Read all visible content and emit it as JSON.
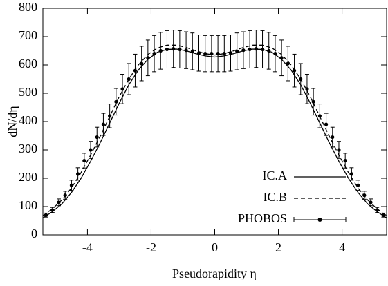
{
  "chart_data": {
    "type": "line",
    "xlabel": "Pseudorapidity η",
    "ylabel": "dN/dη",
    "xlim": [
      -5.4,
      5.4
    ],
    "xticks": [
      -4,
      -2,
      0,
      2,
      4
    ],
    "ylim": [
      0,
      800
    ],
    "yticks": [
      0,
      100,
      200,
      300,
      400,
      500,
      600,
      700,
      800
    ],
    "legend": "lower right",
    "series": [
      {
        "name": "IC.A",
        "color": "#000000",
        "style": "solid",
        "x": [
          -5.4,
          -5.1,
          -4.8,
          -4.5,
          -4.2,
          -3.9,
          -3.6,
          -3.3,
          -3.0,
          -2.7,
          -2.4,
          -2.1,
          -1.8,
          -1.5,
          -1.2,
          -0.9,
          -0.6,
          -0.3,
          0,
          0.3,
          0.6,
          0.9,
          1.2,
          1.5,
          1.8,
          2.1,
          2.4,
          2.7,
          3.0,
          3.3,
          3.6,
          3.9,
          4.2,
          4.5,
          4.8,
          5.1,
          5.4
        ],
        "values": [
          60,
          82,
          110,
          150,
          200,
          260,
          325,
          395,
          465,
          530,
          582,
          620,
          645,
          655,
          656,
          650,
          640,
          632,
          628,
          632,
          640,
          650,
          656,
          655,
          645,
          620,
          582,
          530,
          465,
          395,
          325,
          260,
          200,
          150,
          110,
          82,
          60
        ]
      },
      {
        "name": "IC.B",
        "color": "#000000",
        "style": "dashed",
        "x": [
          -5.4,
          -5.1,
          -4.8,
          -4.5,
          -4.2,
          -3.9,
          -3.6,
          -3.3,
          -3.0,
          -2.7,
          -2.4,
          -2.1,
          -1.8,
          -1.5,
          -1.2,
          -0.9,
          -0.6,
          -0.3,
          0,
          0.3,
          0.6,
          0.9,
          1.2,
          1.5,
          1.8,
          2.1,
          2.4,
          2.7,
          3.0,
          3.3,
          3.6,
          3.9,
          4.2,
          4.5,
          4.8,
          5.1,
          5.4
        ],
        "values": [
          68,
          92,
          124,
          166,
          220,
          282,
          348,
          418,
          488,
          550,
          600,
          637,
          660,
          670,
          670,
          662,
          650,
          640,
          635,
          640,
          650,
          662,
          670,
          670,
          660,
          637,
          600,
          550,
          488,
          418,
          348,
          282,
          220,
          166,
          124,
          92,
          68
        ]
      },
      {
        "name": "PHOBOS",
        "color": "#000000",
        "style": "points",
        "x": [
          -5.3,
          -5.1,
          -4.9,
          -4.7,
          -4.5,
          -4.3,
          -4.1,
          -3.9,
          -3.7,
          -3.5,
          -3.3,
          -3.1,
          -2.9,
          -2.7,
          -2.5,
          -2.3,
          -2.1,
          -1.9,
          -1.7,
          -1.5,
          -1.3,
          -1.1,
          -0.9,
          -0.7,
          -0.5,
          -0.3,
          -0.1,
          0.1,
          0.3,
          0.5,
          0.7,
          0.9,
          1.1,
          1.3,
          1.5,
          1.7,
          1.9,
          2.1,
          2.3,
          2.5,
          2.7,
          2.9,
          3.1,
          3.3,
          3.5,
          3.7,
          3.9,
          4.1,
          4.3,
          4.5,
          4.7,
          4.9,
          5.1,
          5.3
        ],
        "values": [
          70,
          88,
          115,
          140,
          175,
          215,
          262,
          300,
          345,
          390,
          420,
          470,
          515,
          550,
          580,
          605,
          625,
          640,
          650,
          655,
          657,
          655,
          652,
          648,
          642,
          640,
          640,
          640,
          640,
          642,
          648,
          652,
          655,
          657,
          655,
          650,
          640,
          625,
          605,
          580,
          550,
          515,
          470,
          420,
          390,
          345,
          300,
          262,
          215,
          175,
          140,
          115,
          88,
          70
        ],
        "errors": [
          7,
          9,
          12,
          14,
          18,
          22,
          26,
          30,
          35,
          39,
          42,
          47,
          52,
          55,
          58,
          61,
          63,
          64,
          65,
          66,
          66,
          66,
          65,
          65,
          64,
          64,
          64,
          64,
          64,
          64,
          65,
          65,
          66,
          66,
          66,
          65,
          64,
          63,
          61,
          58,
          55,
          52,
          47,
          42,
          39,
          35,
          30,
          26,
          22,
          18,
          14,
          12,
          9,
          7
        ]
      }
    ]
  }
}
